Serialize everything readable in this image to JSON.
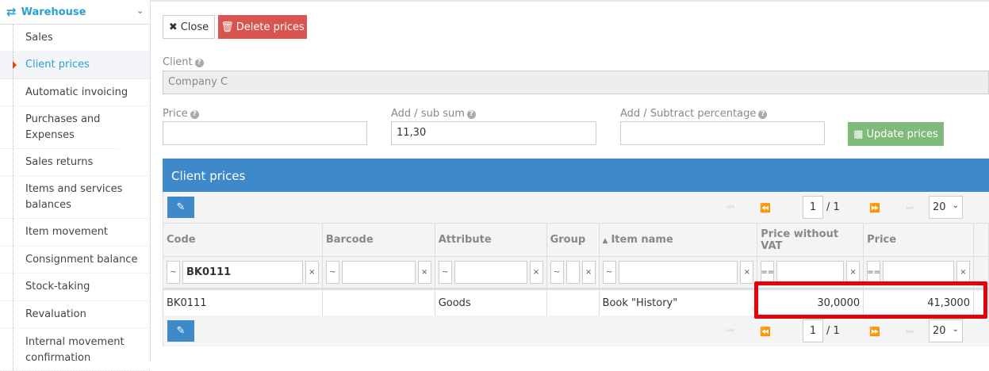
{
  "sidebar": {
    "section": "Warehouse",
    "section_icon": "exchange-arrows-icon",
    "items": [
      {
        "label": "Sales"
      },
      {
        "label": "Client prices",
        "active": true
      },
      {
        "label": "Automatic invoicing"
      },
      {
        "label": "Purchases and Expenses"
      },
      {
        "label": "Sales returns"
      },
      {
        "label": "Items and services balances"
      },
      {
        "label": "Item movement"
      },
      {
        "label": "Consignment balance"
      },
      {
        "label": "Stock-taking"
      },
      {
        "label": "Revaluation"
      },
      {
        "label": "Internal movement confirmation"
      }
    ]
  },
  "toolbar": {
    "close": "Close",
    "delete": "Delete prices"
  },
  "form": {
    "client_label": "Client",
    "client_value": "Company C",
    "price_label": "Price",
    "price_value": "",
    "addsub_label": "Add / sub sum",
    "addsub_value": "11,30",
    "percent_label": "Add / Subtract percentage",
    "percent_value": "",
    "update": "Update prices"
  },
  "grid": {
    "title": "Client prices",
    "page": "1",
    "total": "/ 1",
    "page_size": "20",
    "columns": [
      "Code",
      "Barcode",
      "Attribute",
      "Group",
      "Item name",
      "Price without VAT",
      "Price"
    ],
    "filters": [
      {
        "op": "~",
        "value": "BK0111"
      },
      {
        "op": "~",
        "value": ""
      },
      {
        "op": "~",
        "value": ""
      },
      {
        "op": "~",
        "value": ""
      },
      {
        "op": "~",
        "value": ""
      },
      {
        "op": "==",
        "value": ""
      },
      {
        "op": "==",
        "value": ""
      }
    ],
    "rows": [
      {
        "code": "BK0111",
        "barcode": "",
        "attribute": "Goods",
        "group": "",
        "item_name": "Book \"History\"",
        "price_without_vat": "30,0000",
        "price": "41,3000"
      }
    ]
  },
  "colors": {
    "accent": "#3d89c9",
    "danger": "#d9534f",
    "success": "#7fba7a",
    "highlight": "#e8000b"
  }
}
